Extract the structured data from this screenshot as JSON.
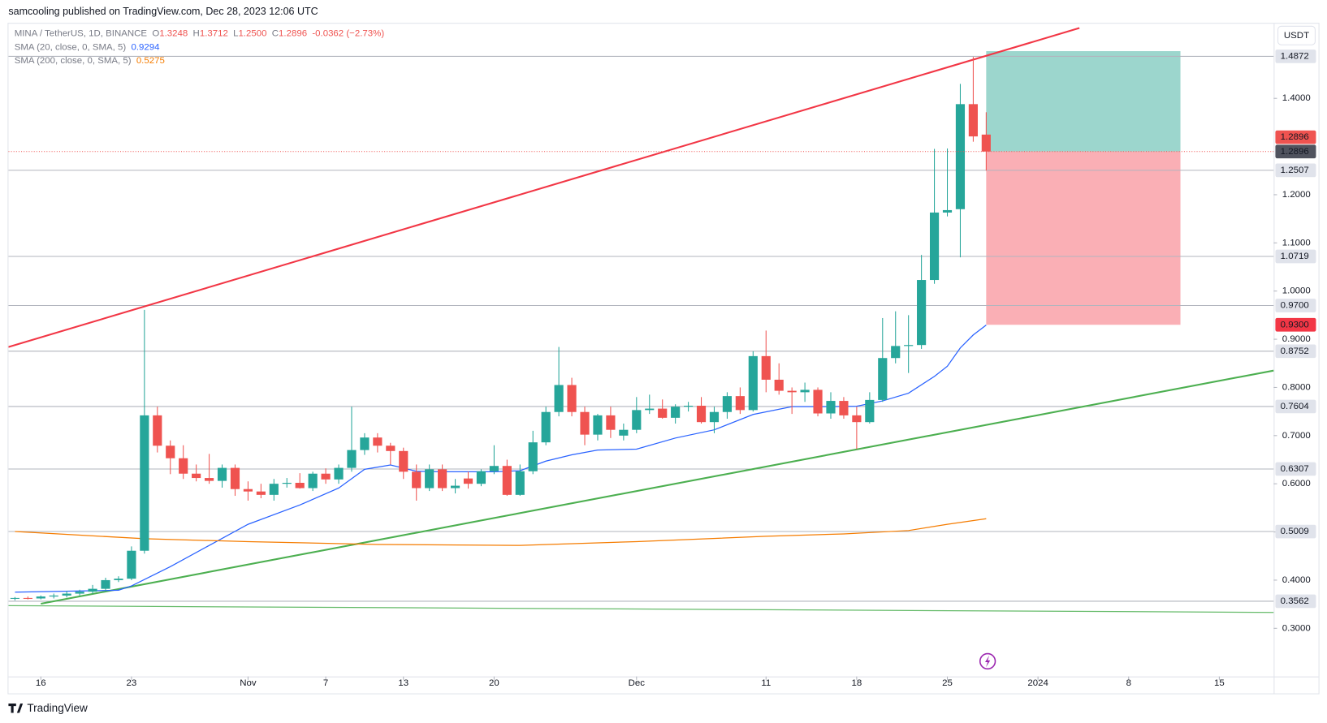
{
  "header": {
    "published": "samcooling published on TradingView.com, Dec 28, 2023 12:06 UTC",
    "logo": "TradingView"
  },
  "chart_data": {
    "type": "candlestick",
    "symbol": "MINA / TetherUS, 1D, BINANCE",
    "ohlc_legend": [
      {
        "key": "O",
        "value": "1.3248"
      },
      {
        "key": "H",
        "value": "1.3712"
      },
      {
        "key": "L",
        "value": "1.2500"
      },
      {
        "key": "C",
        "value": "1.2896"
      }
    ],
    "change": "-0.0362 (−2.73%)",
    "currency": "USDT",
    "up_color": "#26a69a",
    "down_color": "#ef5350",
    "grid": false,
    "xlim": [
      -2.5,
      95.2
    ],
    "xticks": [
      {
        "value": 0,
        "label": "16"
      },
      {
        "value": 7,
        "label": "23"
      },
      {
        "value": 16,
        "label": "Nov"
      },
      {
        "value": 22,
        "label": "7"
      },
      {
        "value": 28,
        "label": "13"
      },
      {
        "value": 35,
        "label": "20"
      },
      {
        "value": 46,
        "label": "Dec"
      },
      {
        "value": 56,
        "label": "11"
      },
      {
        "value": 63,
        "label": "18"
      },
      {
        "value": 70,
        "label": "25"
      },
      {
        "value": 77,
        "label": "2024"
      },
      {
        "value": 84,
        "label": "8"
      },
      {
        "value": 91,
        "label": "15"
      }
    ],
    "ylim": [
      0.2,
      1.555
    ],
    "yticks": [
      {
        "value": 0.3,
        "label": "0.3000"
      },
      {
        "value": 0.4,
        "label": "0.4000"
      },
      {
        "value": 0.5,
        "label": "0.5000"
      },
      {
        "value": 0.6,
        "label": "0.6000"
      },
      {
        "value": 0.7,
        "label": "0.7000"
      },
      {
        "value": 0.8,
        "label": "0.8000"
      },
      {
        "value": 0.9,
        "label": "0.9000"
      },
      {
        "value": 1.0,
        "label": "1.0000"
      },
      {
        "value": 1.1,
        "label": "1.1000"
      },
      {
        "value": 1.2,
        "label": "1.2000"
      },
      {
        "value": 1.4,
        "label": "1.4000"
      }
    ],
    "candles": [
      {
        "x": -2,
        "open": 0.362,
        "high": 0.365,
        "low": 0.358,
        "close": 0.363
      },
      {
        "x": -1,
        "open": 0.363,
        "high": 0.366,
        "low": 0.36,
        "close": 0.362
      },
      {
        "x": 0,
        "open": 0.362,
        "high": 0.368,
        "low": 0.36,
        "close": 0.366
      },
      {
        "x": 1,
        "open": 0.366,
        "high": 0.372,
        "low": 0.362,
        "close": 0.368
      },
      {
        "x": 2,
        "open": 0.368,
        "high": 0.378,
        "low": 0.364,
        "close": 0.372
      },
      {
        "x": 3,
        "open": 0.372,
        "high": 0.38,
        "low": 0.368,
        "close": 0.376
      },
      {
        "x": 4,
        "open": 0.376,
        "high": 0.39,
        "low": 0.372,
        "close": 0.382
      },
      {
        "x": 5,
        "open": 0.382,
        "high": 0.405,
        "low": 0.378,
        "close": 0.4
      },
      {
        "x": 6,
        "open": 0.4,
        "high": 0.408,
        "low": 0.396,
        "close": 0.403
      },
      {
        "x": 7,
        "open": 0.403,
        "high": 0.47,
        "low": 0.4,
        "close": 0.461
      },
      {
        "x": 8,
        "open": 0.461,
        "high": 0.961,
        "low": 0.455,
        "close": 0.742
      },
      {
        "x": 9,
        "open": 0.742,
        "high": 0.76,
        "low": 0.665,
        "close": 0.679
      },
      {
        "x": 10,
        "open": 0.679,
        "high": 0.69,
        "low": 0.62,
        "close": 0.653
      },
      {
        "x": 11,
        "open": 0.653,
        "high": 0.68,
        "low": 0.61,
        "close": 0.621
      },
      {
        "x": 12,
        "open": 0.621,
        "high": 0.64,
        "low": 0.605,
        "close": 0.612
      },
      {
        "x": 13,
        "open": 0.612,
        "high": 0.662,
        "low": 0.6,
        "close": 0.606
      },
      {
        "x": 14,
        "open": 0.606,
        "high": 0.64,
        "low": 0.592,
        "close": 0.633
      },
      {
        "x": 15,
        "open": 0.633,
        "high": 0.64,
        "low": 0.575,
        "close": 0.589
      },
      {
        "x": 16,
        "open": 0.589,
        "high": 0.605,
        "low": 0.565,
        "close": 0.584
      },
      {
        "x": 17,
        "open": 0.584,
        "high": 0.6,
        "low": 0.57,
        "close": 0.577
      },
      {
        "x": 18,
        "open": 0.577,
        "high": 0.61,
        "low": 0.565,
        "close": 0.6
      },
      {
        "x": 19,
        "open": 0.6,
        "high": 0.612,
        "low": 0.592,
        "close": 0.602
      },
      {
        "x": 20,
        "open": 0.602,
        "high": 0.622,
        "low": 0.59,
        "close": 0.591
      },
      {
        "x": 21,
        "open": 0.591,
        "high": 0.625,
        "low": 0.585,
        "close": 0.621
      },
      {
        "x": 22,
        "open": 0.621,
        "high": 0.632,
        "low": 0.6,
        "close": 0.609
      },
      {
        "x": 23,
        "open": 0.609,
        "high": 0.64,
        "low": 0.6,
        "close": 0.633
      },
      {
        "x": 24,
        "open": 0.633,
        "high": 0.76,
        "low": 0.625,
        "close": 0.67
      },
      {
        "x": 25,
        "open": 0.67,
        "high": 0.705,
        "low": 0.66,
        "close": 0.696
      },
      {
        "x": 26,
        "open": 0.696,
        "high": 0.705,
        "low": 0.665,
        "close": 0.679
      },
      {
        "x": 27,
        "open": 0.679,
        "high": 0.685,
        "low": 0.64,
        "close": 0.668
      },
      {
        "x": 28,
        "open": 0.668,
        "high": 0.675,
        "low": 0.61,
        "close": 0.625
      },
      {
        "x": 29,
        "open": 0.625,
        "high": 0.64,
        "low": 0.565,
        "close": 0.591
      },
      {
        "x": 30,
        "open": 0.591,
        "high": 0.64,
        "low": 0.585,
        "close": 0.63
      },
      {
        "x": 31,
        "open": 0.63,
        "high": 0.64,
        "low": 0.585,
        "close": 0.591
      },
      {
        "x": 32,
        "open": 0.591,
        "high": 0.61,
        "low": 0.58,
        "close": 0.596
      },
      {
        "x": 33,
        "open": 0.611,
        "high": 0.625,
        "low": 0.59,
        "close": 0.6
      },
      {
        "x": 34,
        "open": 0.6,
        "high": 0.63,
        "low": 0.595,
        "close": 0.626
      },
      {
        "x": 35,
        "open": 0.626,
        "high": 0.68,
        "low": 0.62,
        "close": 0.637
      },
      {
        "x": 36,
        "open": 0.637,
        "high": 0.65,
        "low": 0.575,
        "close": 0.577
      },
      {
        "x": 37,
        "open": 0.577,
        "high": 0.64,
        "low": 0.575,
        "close": 0.626
      },
      {
        "x": 38,
        "open": 0.626,
        "high": 0.71,
        "low": 0.62,
        "close": 0.686
      },
      {
        "x": 39,
        "open": 0.686,
        "high": 0.76,
        "low": 0.68,
        "close": 0.749
      },
      {
        "x": 40,
        "open": 0.749,
        "high": 0.884,
        "low": 0.74,
        "close": 0.805
      },
      {
        "x": 41,
        "open": 0.805,
        "high": 0.82,
        "low": 0.74,
        "close": 0.749
      },
      {
        "x": 42,
        "open": 0.749,
        "high": 0.76,
        "low": 0.68,
        "close": 0.702
      },
      {
        "x": 43,
        "open": 0.702,
        "high": 0.745,
        "low": 0.69,
        "close": 0.742
      },
      {
        "x": 44,
        "open": 0.742,
        "high": 0.76,
        "low": 0.695,
        "close": 0.712
      },
      {
        "x": 45,
        "open": 0.7,
        "high": 0.725,
        "low": 0.69,
        "close": 0.712
      },
      {
        "x": 46,
        "open": 0.712,
        "high": 0.78,
        "low": 0.705,
        "close": 0.753
      },
      {
        "x": 47,
        "open": 0.753,
        "high": 0.785,
        "low": 0.745,
        "close": 0.756
      },
      {
        "x": 48,
        "open": 0.756,
        "high": 0.775,
        "low": 0.735,
        "close": 0.737
      },
      {
        "x": 49,
        "open": 0.737,
        "high": 0.765,
        "low": 0.725,
        "close": 0.76
      },
      {
        "x": 50,
        "open": 0.76,
        "high": 0.77,
        "low": 0.75,
        "close": 0.762
      },
      {
        "x": 51,
        "open": 0.762,
        "high": 0.78,
        "low": 0.725,
        "close": 0.728
      },
      {
        "x": 52,
        "open": 0.728,
        "high": 0.76,
        "low": 0.705,
        "close": 0.749
      },
      {
        "x": 53,
        "open": 0.749,
        "high": 0.79,
        "low": 0.735,
        "close": 0.782
      },
      {
        "x": 54,
        "open": 0.782,
        "high": 0.8,
        "low": 0.745,
        "close": 0.753
      },
      {
        "x": 55,
        "open": 0.753,
        "high": 0.875,
        "low": 0.75,
        "close": 0.865
      },
      {
        "x": 56,
        "open": 0.865,
        "high": 0.918,
        "low": 0.79,
        "close": 0.816
      },
      {
        "x": 57,
        "open": 0.816,
        "high": 0.85,
        "low": 0.785,
        "close": 0.793
      },
      {
        "x": 58,
        "open": 0.793,
        "high": 0.8,
        "low": 0.745,
        "close": 0.79
      },
      {
        "x": 59,
        "open": 0.79,
        "high": 0.81,
        "low": 0.77,
        "close": 0.795
      },
      {
        "x": 60,
        "open": 0.795,
        "high": 0.8,
        "low": 0.74,
        "close": 0.746
      },
      {
        "x": 61,
        "open": 0.746,
        "high": 0.79,
        "low": 0.735,
        "close": 0.772
      },
      {
        "x": 62,
        "open": 0.772,
        "high": 0.78,
        "low": 0.735,
        "close": 0.742
      },
      {
        "x": 63,
        "open": 0.742,
        "high": 0.76,
        "low": 0.672,
        "close": 0.728
      },
      {
        "x": 64,
        "open": 0.728,
        "high": 0.79,
        "low": 0.725,
        "close": 0.774
      },
      {
        "x": 65,
        "open": 0.774,
        "high": 0.944,
        "low": 0.77,
        "close": 0.861
      },
      {
        "x": 66,
        "open": 0.861,
        "high": 0.958,
        "low": 0.85,
        "close": 0.886
      },
      {
        "x": 67,
        "open": 0.886,
        "high": 0.95,
        "low": 0.83,
        "close": 0.888
      },
      {
        "x": 68,
        "open": 0.888,
        "high": 1.075,
        "low": 0.88,
        "close": 1.023
      },
      {
        "x": 69,
        "open": 1.023,
        "high": 1.295,
        "low": 1.015,
        "close": 1.163
      },
      {
        "x": 70,
        "open": 1.163,
        "high": 1.296,
        "low": 1.155,
        "close": 1.168
      },
      {
        "x": 71,
        "open": 1.17,
        "high": 1.43,
        "low": 1.07,
        "close": 1.388
      },
      {
        "x": 72,
        "open": 1.388,
        "high": 1.486,
        "low": 1.31,
        "close": 1.321
      },
      {
        "x": 73,
        "open": 1.3248,
        "high": 1.3712,
        "low": 1.25,
        "close": 1.2896
      }
    ],
    "series": [
      {
        "name": "SMA (20, close, 0, SMA, 5)",
        "color": "#2962ff",
        "x": [
          -2,
          6,
          7,
          10,
          13,
          16,
          20,
          23,
          25,
          27,
          29,
          31,
          33,
          35,
          37,
          39,
          41,
          43,
          46,
          49,
          52,
          55,
          58,
          61,
          63,
          65,
          67,
          69,
          70,
          71,
          72,
          73
        ],
        "values": [
          0.375,
          0.379,
          0.388,
          0.428,
          0.472,
          0.516,
          0.556,
          0.591,
          0.63,
          0.639,
          0.626,
          0.625,
          0.625,
          0.625,
          0.627,
          0.647,
          0.66,
          0.67,
          0.672,
          0.695,
          0.712,
          0.744,
          0.76,
          0.76,
          0.761,
          0.772,
          0.788,
          0.823,
          0.844,
          0.882,
          0.909,
          0.9294
        ]
      },
      {
        "name": "SMA (200, close, 0, SMA, 5)",
        "color": "#f57c00",
        "x": [
          -2,
          8,
          16,
          26,
          37,
          46,
          56,
          62,
          67,
          70,
          73
        ],
        "values": [
          0.501,
          0.486,
          0.48,
          0.474,
          0.472,
          0.48,
          0.491,
          0.496,
          0.503,
          0.516,
          0.5275
        ]
      }
    ],
    "trendlines": [
      {
        "color": "#f23645",
        "x": [
          -2.5,
          80.2
        ],
        "values": [
          0.884,
          1.546
        ]
      },
      {
        "color": "#4caf50",
        "x": [
          0,
          95.2
        ],
        "values": [
          0.351,
          0.835
        ]
      },
      {
        "color": "#66bb6a",
        "x": [
          -2.5,
          95.2
        ],
        "values": [
          0.347,
          0.333
        ]
      }
    ],
    "levels": [
      1.4872,
      1.2507,
      1.0719,
      {
        "value": 0.97,
        "label": "0.9700"
      },
      0.8752,
      0.7604,
      0.6307,
      0.5009,
      0.3562
    ],
    "position": {
      "start": 73,
      "end": 88,
      "entry": 1.2896,
      "target": 1.498,
      "stop": 0.93,
      "stop_label": "0.9300"
    }
  }
}
